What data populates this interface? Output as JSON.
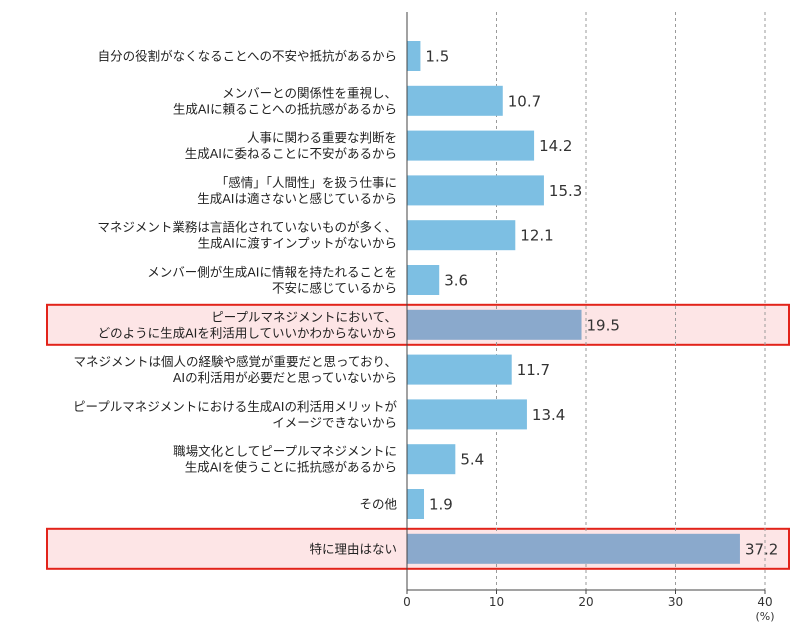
{
  "chart_data": {
    "type": "bar",
    "orientation": "horizontal",
    "categories": [
      [
        "自分の役割がなくなることへの不安や抵抗があるから"
      ],
      [
        "メンバーとの関係性を重視し、",
        "生成AIに頼ることへの抵抗感があるから"
      ],
      [
        "人事に関わる重要な判断を",
        "生成AIに委ねることに不安があるから"
      ],
      [
        "「感情」「人間性」を扱う仕事に",
        "生成AIは適さないと感じているから"
      ],
      [
        "マネジメント業務は言語化されていないものが多く、",
        "生成AIに渡すインプットがないから"
      ],
      [
        "メンバー側が生成AIに情報を持たれることを",
        "不安に感じているから"
      ],
      [
        "ピープルマネジメントにおいて、",
        "どのように生成AIを利活用していいかわからないから"
      ],
      [
        "マネジメントは個人の経験や感覚が重要だと思っており、",
        "AIの利活用が必要だと思っていないから"
      ],
      [
        "ピープルマネジメントにおける生成AIの利活用メリットが",
        "イメージできないから"
      ],
      [
        "職場文化としてピープルマネジメントに",
        "生成AIを使うことに抵抗感があるから"
      ],
      [
        "その他"
      ],
      [
        "特に理由はない"
      ]
    ],
    "value_labels": [
      "1.5",
      "10.7",
      "14.2",
      "15.3",
      "12.1",
      "3.6",
      "19.5",
      "11.7",
      "13.4",
      "5.4",
      "1.9",
      "37.2"
    ],
    "values": [
      1.5,
      10.7,
      14.2,
      15.3,
      12.1,
      3.6,
      19.5,
      11.7,
      13.4,
      5.4,
      1.9,
      37.2
    ],
    "highlighted": [
      6,
      11
    ],
    "xlim": [
      0,
      40
    ],
    "xticks": [
      "0",
      "10",
      "20",
      "30",
      "40"
    ],
    "xtick_values": [
      0,
      10,
      20,
      30,
      40
    ],
    "unit_label": "(%)",
    "grid": "vertical-dashed",
    "colors": {
      "bar": "#7dbfe3",
      "bar_highlight": "#8aa9cc",
      "highlight_fill": "#fde5e6",
      "highlight_border": "#e2231a",
      "grid": "#9a9a9a",
      "axis": "#444444"
    }
  }
}
